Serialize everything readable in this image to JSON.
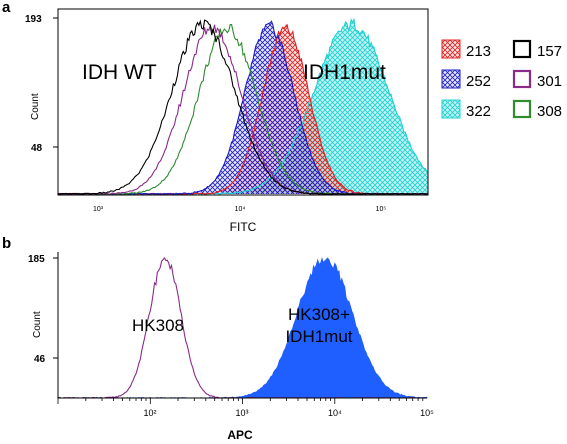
{
  "chart_data": [
    {
      "panel_label": "a",
      "type": "area",
      "xscale": "log",
      "xlim": [
        460,
        170000
      ],
      "ylim": [
        0,
        200
      ],
      "xlabel": "FITC",
      "ylabel": "Count",
      "yticks": [
        "193",
        "48"
      ],
      "yticks_values": [
        193,
        48
      ],
      "xticks": [
        "10³",
        "10⁴",
        "10⁵"
      ],
      "xticks_values": [
        1000,
        10000,
        100000
      ],
      "annotations": [
        "IDH WT",
        "IDH1mut"
      ],
      "legend_placement": "right",
      "series": [
        {
          "name": "157",
          "color": "#000000",
          "fill": "none",
          "mean": 4700,
          "sd": 0.22,
          "peak": 193
        },
        {
          "name": "301",
          "color": "#8a2a8a",
          "fill": "none",
          "mean": 5400,
          "sd": 0.2,
          "peak": 190
        },
        {
          "name": "308",
          "color": "#2e8b2e",
          "fill": "none",
          "mean": 6900,
          "sd": 0.2,
          "peak": 188
        },
        {
          "name": "252",
          "color": "#1c1cc8",
          "fill": "crosshatch",
          "mean": 13500,
          "sd": 0.17,
          "peak": 190
        },
        {
          "name": "213",
          "color": "#e02020",
          "fill": "crosshatch",
          "mean": 17500,
          "sd": 0.16,
          "peak": 188
        },
        {
          "name": "322",
          "color": "#1fd0d0",
          "fill": "crosshatch",
          "mean": 50000,
          "sd": 0.26,
          "peak": 193
        }
      ],
      "legend_order": [
        "213",
        "157",
        "252",
        "301",
        "322",
        "308"
      ]
    },
    {
      "panel_label": "b",
      "type": "area",
      "xscale": "log",
      "xlim": [
        10,
        100000
      ],
      "ylim": [
        0,
        185
      ],
      "xlabel": "APC",
      "ylabel": "Count",
      "yticks": [
        "185",
        "46"
      ],
      "yticks_values": [
        185,
        46
      ],
      "xticks": [
        "10²",
        "10³",
        "10⁴",
        "10⁵"
      ],
      "xticks_values": [
        100,
        1000,
        10000,
        100000
      ],
      "annotations": [
        "HK308",
        "HK308+",
        "IDH1mut"
      ],
      "series": [
        {
          "name": "HK308",
          "color": "#8a2a8a",
          "fill": "none",
          "mean": 145,
          "sd": 0.17,
          "peak": 185
        },
        {
          "name": "HK308+ IDH1mut",
          "color": "#1f5fff",
          "fill": "solid",
          "mean": 7800,
          "sd": 0.3,
          "peak": 185
        }
      ]
    }
  ]
}
